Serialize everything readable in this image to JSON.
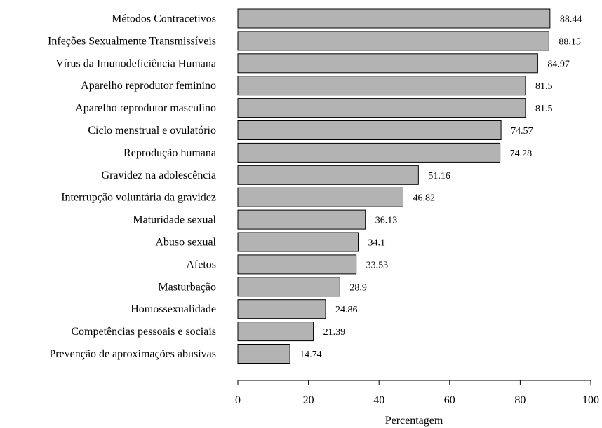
{
  "chart_data": {
    "type": "bar",
    "orientation": "horizontal",
    "categories": [
      "Métodos Contracetivos",
      "Infeções Sexualmente Transmissíveis",
      "Vírus da Imunodeficiência Humana",
      "Aparelho reprodutor feminino",
      "Aparelho reprodutor masculino",
      "Ciclo menstrual e ovulatório",
      "Reprodução humana",
      "Gravidez na adolescência",
      "Interrupção voluntária da gravidez",
      "Maturidade sexual",
      "Abuso sexual",
      "Afetos",
      "Masturbação",
      "Homossexualidade",
      "Competências pessoais e sociais",
      "Prevenção de aproximações abusivas"
    ],
    "values": [
      88.44,
      88.15,
      84.97,
      81.5,
      81.5,
      74.57,
      74.28,
      51.16,
      46.82,
      36.13,
      34.1,
      33.53,
      28.9,
      24.86,
      21.39,
      14.74
    ],
    "value_labels": [
      "88.44",
      "88.15",
      "84.97",
      "81.5",
      "81.5",
      "74.57",
      "74.28",
      "51.16",
      "46.82",
      "36.13",
      "34.1",
      "33.53",
      "28.9",
      "24.86",
      "21.39",
      "14.74"
    ],
    "xlabel": "Percentagem",
    "xlim": [
      0,
      100
    ],
    "xticks": [
      0,
      20,
      40,
      60,
      80,
      100
    ],
    "grid": false,
    "colors": {
      "bar_fill": "#b3b3b3",
      "bar_stroke": "#000000"
    }
  }
}
